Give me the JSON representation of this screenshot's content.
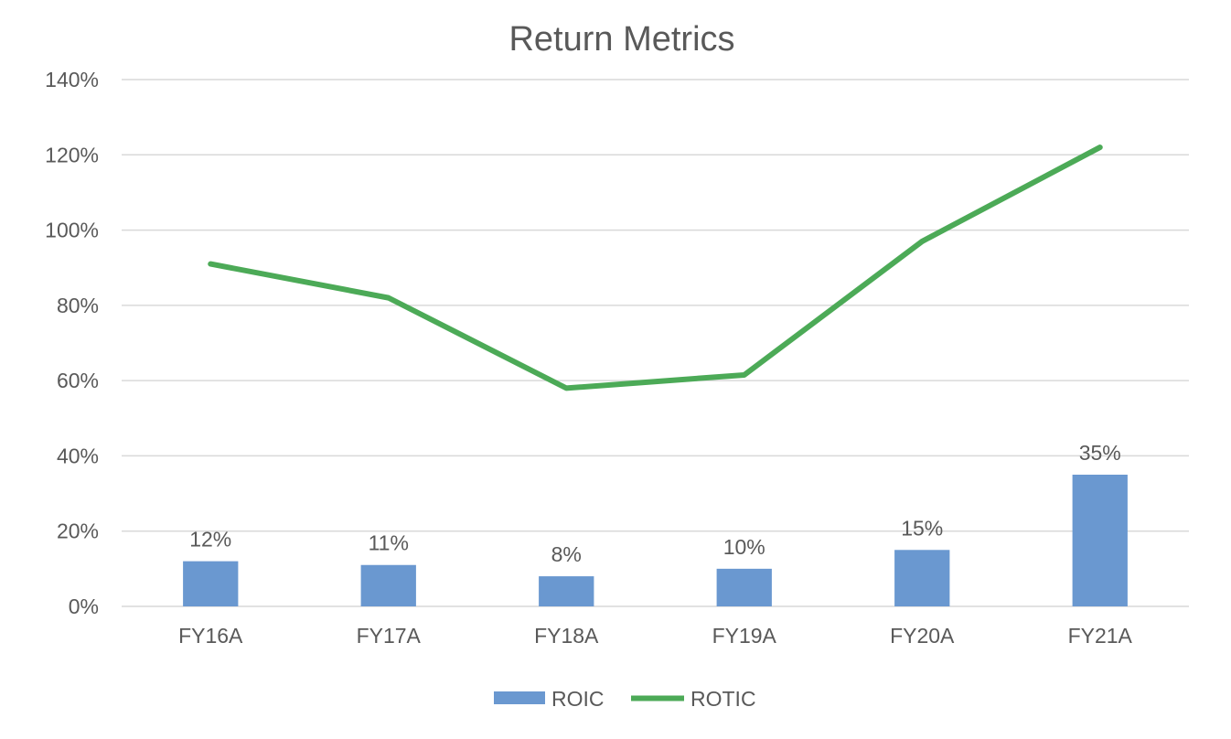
{
  "chart_data": {
    "type": "bar",
    "title": "Return Metrics",
    "xlabel": "",
    "ylabel": "",
    "categories": [
      "FY16A",
      "FY17A",
      "FY18A",
      "FY19A",
      "FY20A",
      "FY21A"
    ],
    "ylim": [
      0,
      140
    ],
    "y_ticks": [
      0,
      20,
      40,
      60,
      80,
      100,
      120,
      140
    ],
    "y_tick_format": "%",
    "grid": true,
    "legend_position": "bottom",
    "series": [
      {
        "name": "ROIC",
        "kind": "bar",
        "color": "#6a98d0",
        "values": [
          12,
          11,
          8,
          10,
          15,
          35
        ],
        "data_labels": [
          "12%",
          "11%",
          "8%",
          "10%",
          "15%",
          "35%"
        ]
      },
      {
        "name": "ROTIC",
        "kind": "line",
        "color": "#4caa57",
        "values": [
          91,
          82,
          58,
          61.5,
          97,
          122
        ]
      }
    ]
  }
}
